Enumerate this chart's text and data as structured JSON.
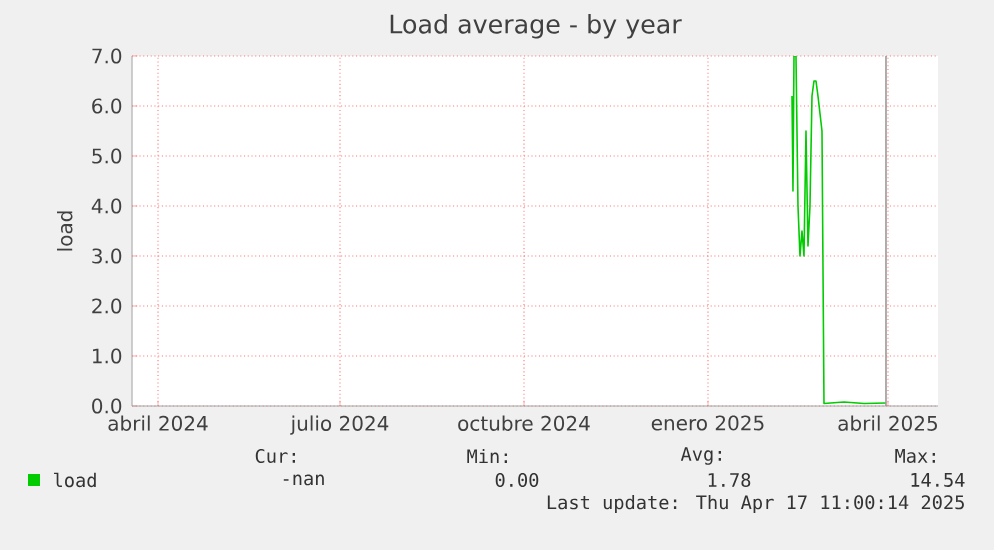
{
  "chart_data": {
    "type": "line",
    "title": "Load average - by year",
    "ylabel": "load",
    "xlim": [
      "2024-03-19",
      "2025-04-26"
    ],
    "xticks": [
      {
        "value": "2024-04-01",
        "label": "abril 2024"
      },
      {
        "value": "2024-07-01",
        "label": "julio 2024"
      },
      {
        "value": "2024-10-01",
        "label": "octubre 2024"
      },
      {
        "value": "2025-01-01",
        "label": "enero 2025"
      },
      {
        "value": "2025-04-01",
        "label": "abril 2025"
      }
    ],
    "ylim": [
      0,
      7
    ],
    "yticks": [
      {
        "value": 0,
        "label": "0.0"
      },
      {
        "value": 1,
        "label": "1.0"
      },
      {
        "value": 2,
        "label": "2.0"
      },
      {
        "value": 3,
        "label": "3.0"
      },
      {
        "value": 4,
        "label": "4.0"
      },
      {
        "value": 5,
        "label": "5.0"
      },
      {
        "value": 6,
        "label": "6.0"
      },
      {
        "value": 7,
        "label": "7.0"
      }
    ],
    "x": [
      "2025-02-12",
      "2025-02-12T12:00",
      "2025-02-13",
      "2025-02-14",
      "2025-02-15",
      "2025-02-16",
      "2025-02-17",
      "2025-02-18",
      "2025-02-19",
      "2025-02-20",
      "2025-02-21",
      "2025-02-22",
      "2025-02-23",
      "2025-02-24",
      "2025-02-25",
      "2025-02-27",
      "2025-02-28",
      "2025-03-10",
      "2025-03-20",
      "2025-03-31"
    ],
    "series": [
      {
        "name": "load",
        "color": "#00cc00",
        "values": [
          6.2,
          4.3,
          7.0,
          7.0,
          4.0,
          3.0,
          3.5,
          3.0,
          5.5,
          3.2,
          4.0,
          6.2,
          6.5,
          6.5,
          6.2,
          5.5,
          0.05,
          0.08,
          0.05,
          0.06
        ]
      }
    ],
    "ref_lines": [
      {
        "axis": "x",
        "value": "2025-03-31",
        "color": "#999999"
      }
    ],
    "grid": true,
    "legend": "bottom left",
    "marker": "none",
    "line_style": "solid",
    "annotations": [
      "Cur:",
      "Min:",
      "Avg:",
      "Max:",
      "-nan",
      "0.00",
      "1.78",
      "14.54",
      "Last update: Thu Apr 17 11:00:14 2025"
    ]
  }
}
